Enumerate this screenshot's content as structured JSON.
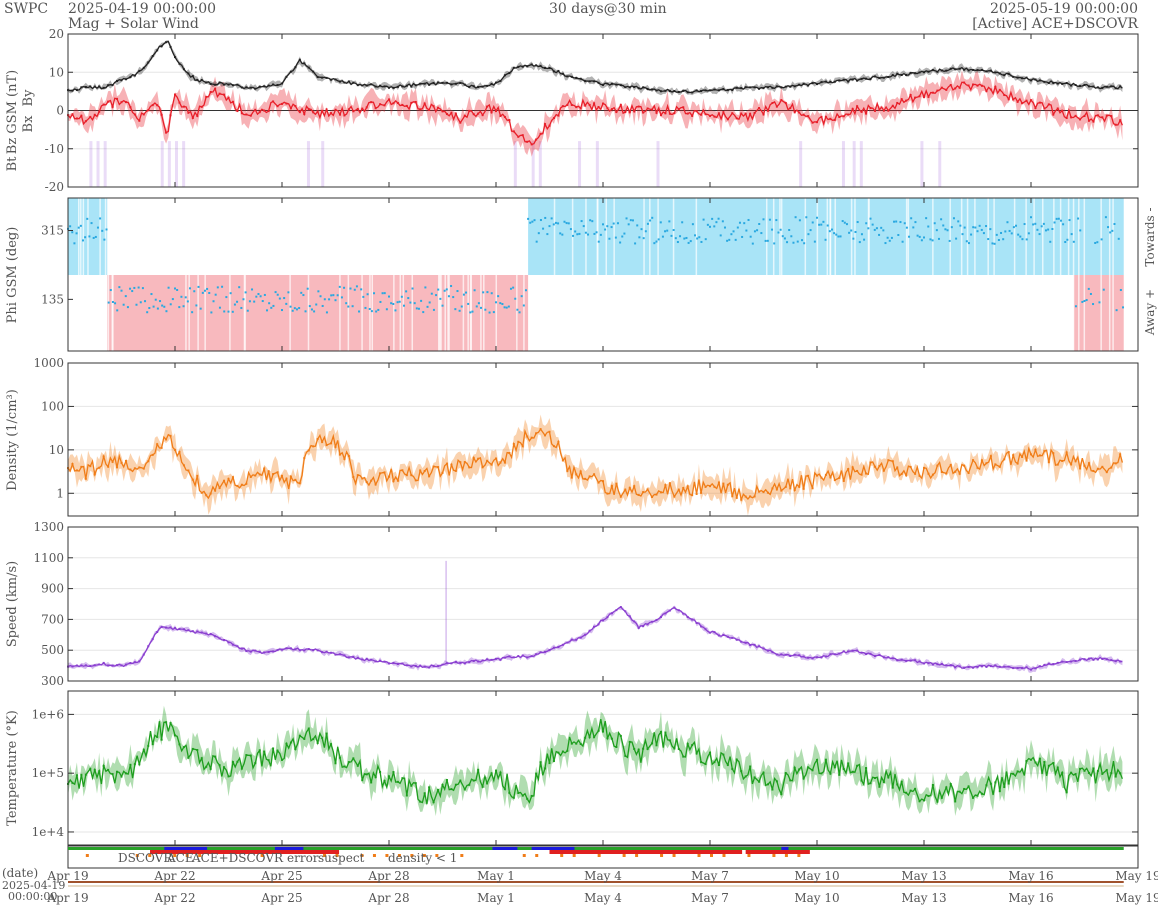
{
  "header": {
    "brand": "SWPC",
    "start": "2025-04-19 00:00:00",
    "subtitle": "Mag + Solar Wind",
    "range": "30 days@30 min",
    "end": "2025-05-19 00:00:00",
    "source": "[Active] ACE+DSCOVR"
  },
  "colors": {
    "bt": "#222222",
    "bz": "#e8202a",
    "by": "#29a8e0",
    "bx": "#8a3fd0",
    "phi": "#29a8e0",
    "phi_towards": "#a9e4f7",
    "phi_away": "#f8b9be",
    "density": "#f07d18",
    "speed": "#8a3fd0",
    "temperature": "#1e9e1e",
    "dscovr": "#1b1bdc",
    "ace": "#2aa22a",
    "ace_dscovr": "#e020c8",
    "error": "#e02020",
    "suspect": "#e6b800",
    "density_lt_1": "#f07d18"
  },
  "chart_data": [
    {
      "type": "line",
      "panel": "magnetic field",
      "ylabel_parts": [
        "Bt",
        "Bz GSM (nT)",
        "By",
        "Bx"
      ],
      "yticks": [
        "20",
        "10",
        "0",
        "-10",
        "-20"
      ],
      "ylim": [
        -20,
        20
      ],
      "x_unit": "days since 2025-04-19",
      "series": [
        {
          "name": "Bt",
          "x": [
            0,
            0.5,
            1,
            1.5,
            2,
            2.3,
            2.6,
            2.8,
            3,
            3.3,
            3.6,
            4,
            4.5,
            5,
            5.5,
            6,
            6.5,
            7,
            8,
            9,
            10,
            11,
            11.5,
            12,
            12.5,
            13,
            13.5,
            14,
            15,
            16,
            17,
            18,
            19,
            20,
            21,
            22,
            23,
            24,
            25,
            26,
            27,
            28,
            29,
            29.6
          ],
          "y": [
            5,
            6,
            6,
            8,
            10,
            13,
            17,
            18,
            14,
            10,
            8,
            7,
            7,
            6,
            6,
            7,
            13,
            9,
            7,
            6,
            7,
            7,
            6,
            7,
            11,
            12,
            11,
            9,
            7,
            6,
            5,
            5,
            6,
            6,
            7,
            8,
            9,
            10,
            11,
            10,
            8,
            7,
            6,
            6
          ]
        },
        {
          "name": "Bz GSM",
          "x": [
            0,
            0.5,
            1,
            1.5,
            2,
            2.5,
            2.8,
            3,
            3.5,
            4,
            4.5,
            5,
            6,
            7,
            8,
            9,
            10,
            11,
            12,
            12.5,
            13,
            13.5,
            14,
            15,
            16,
            17,
            18,
            19,
            20,
            21,
            22,
            23,
            24,
            25,
            26,
            27,
            28,
            29,
            29.6
          ],
          "y": [
            -1,
            -3,
            1,
            3,
            -2,
            2,
            -6,
            4,
            -2,
            5,
            3,
            -1,
            2,
            -1,
            0,
            2,
            1,
            -2,
            1,
            -5,
            -9,
            -3,
            2,
            1,
            0,
            0,
            -1,
            -2,
            2,
            -3,
            0,
            1,
            4,
            7,
            5,
            2,
            -1,
            -2,
            -3
          ]
        }
      ]
    },
    {
      "type": "scatter",
      "panel": "phi",
      "ylabel": "Phi GSM (deg)",
      "yticks": [
        "315",
        "135"
      ],
      "ylim": [
        0,
        400
      ],
      "right_labels": [
        "Towards -",
        "Away +"
      ],
      "segments": [
        {
          "sector": "towards",
          "x": [
            0,
            1.1
          ],
          "phi": 315
        },
        {
          "sector": "away",
          "x": [
            1.1,
            12.9
          ],
          "phi": 135
        },
        {
          "sector": "towards",
          "x": [
            12.9,
            29.6
          ],
          "phi": 315
        },
        {
          "sector": "away",
          "x": [
            28.2,
            29.6
          ],
          "phi": 135
        }
      ]
    },
    {
      "type": "line",
      "panel": "density",
      "ylabel": "Density (1/cm³)",
      "yticks": [
        "1000",
        "100",
        "10",
        "1"
      ],
      "scale": "log",
      "ylim": [
        0.3,
        1000
      ],
      "series": [
        {
          "name": "Density",
          "x": [
            0,
            0.5,
            1,
            1.5,
            2,
            2.5,
            2.8,
            3,
            3.5,
            4,
            4.5,
            5,
            5.5,
            6,
            6.5,
            7,
            7.5,
            8,
            9,
            10,
            11,
            11.5,
            12,
            12.5,
            13,
            13.5,
            14,
            15,
            16,
            17,
            18,
            19,
            20,
            21,
            22,
            23,
            24,
            25,
            26,
            27,
            28,
            29,
            29.6
          ],
          "y": [
            4,
            3,
            5,
            6,
            4,
            10,
            25,
            8,
            2,
            1,
            1.5,
            2,
            3,
            2,
            1.5,
            15,
            14,
            2,
            2.5,
            3,
            4,
            6,
            5,
            10,
            25,
            18,
            3,
            1.5,
            1,
            1.2,
            1.5,
            1,
            1.5,
            2,
            3,
            4,
            3,
            4,
            5,
            8,
            6,
            4,
            6
          ]
        }
      ]
    },
    {
      "type": "line",
      "panel": "speed",
      "ylabel": "Speed (km/s)",
      "yticks": [
        "1300",
        "1100",
        "900",
        "700",
        "500",
        "300"
      ],
      "ylim": [
        300,
        1300
      ],
      "series": [
        {
          "name": "Speed",
          "x": [
            0,
            0.5,
            1,
            1.5,
            2,
            2.3,
            2.6,
            3,
            3.5,
            4,
            4.5,
            5,
            5.5,
            6,
            7,
            8,
            9,
            10,
            11,
            12,
            12.5,
            13,
            13.5,
            14,
            14.5,
            15,
            15.5,
            16,
            16.5,
            17,
            17.5,
            18,
            19,
            20,
            21,
            22,
            23,
            24,
            25,
            26,
            27,
            28,
            29,
            29.6
          ],
          "y": [
            400,
            395,
            410,
            400,
            420,
            550,
            650,
            640,
            620,
            600,
            550,
            500,
            480,
            510,
            500,
            450,
            420,
            390,
            420,
            440,
            460,
            460,
            500,
            550,
            600,
            700,
            780,
            650,
            700,
            780,
            700,
            620,
            550,
            470,
            450,
            500,
            450,
            420,
            390,
            400,
            380,
            430,
            450,
            420
          ]
        }
      ]
    },
    {
      "type": "line",
      "panel": "temperature",
      "ylabel": "Temperature (°K)",
      "yticks": [
        "1e+6",
        "1e+5",
        "1e+4"
      ],
      "scale": "log",
      "ylim": [
        6000,
        2500000
      ],
      "series": [
        {
          "name": "Temperature",
          "x": [
            0,
            0.5,
            1,
            1.5,
            2,
            2.5,
            2.8,
            3,
            3.5,
            4,
            4.5,
            5,
            5.5,
            6,
            6.5,
            7,
            7.5,
            8,
            9,
            10,
            11,
            12,
            12.5,
            13,
            13.5,
            14,
            14.5,
            15,
            15.5,
            16,
            16.5,
            17,
            18,
            19,
            20,
            21,
            22,
            23,
            24,
            25,
            26,
            27,
            28,
            29,
            29.6
          ],
          "y": [
            60000,
            80000,
            90000,
            70000,
            150000,
            500000,
            600000,
            400000,
            200000,
            150000,
            120000,
            150000,
            180000,
            200000,
            400000,
            450000,
            200000,
            120000,
            80000,
            40000,
            60000,
            100000,
            50000,
            30000,
            200000,
            300000,
            400000,
            600000,
            300000,
            200000,
            400000,
            300000,
            200000,
            100000,
            60000,
            150000,
            100000,
            80000,
            40000,
            50000,
            60000,
            150000,
            70000,
            100000,
            120000
          ]
        }
      ]
    }
  ],
  "x_axis": {
    "ticks": [
      "Apr 19",
      "Apr 22",
      "Apr 25",
      "Apr 28",
      "May 1",
      "May 4",
      "May 7",
      "May 10",
      "May 13",
      "May 16",
      "May 19"
    ],
    "start_label": [
      "2025-04-19",
      "00:00:00"
    ],
    "date_label": "(date)"
  },
  "legend": [
    "DSCOVR",
    "ACE",
    "ACE+DSCOVR",
    "error",
    "suspect",
    "density < 1"
  ]
}
